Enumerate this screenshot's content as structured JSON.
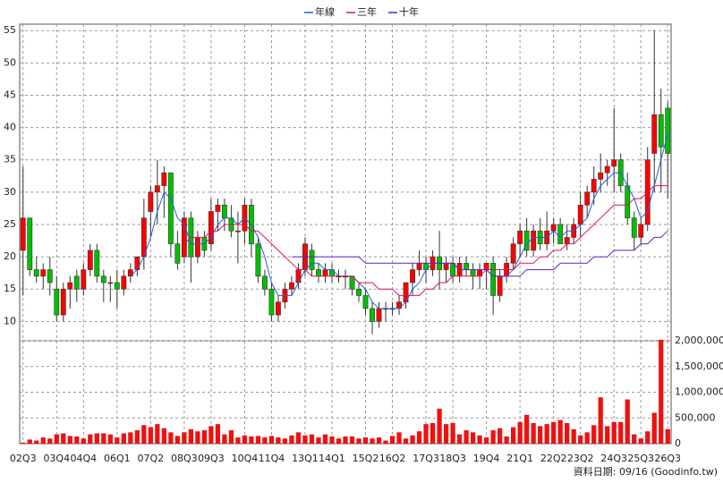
{
  "chart_data": {
    "type": "candlestick",
    "legend": [
      "年線",
      "三年",
      "十年"
    ],
    "footer": "資料日期: 09/16 (Goodinfo.tw)",
    "categories": [
      "02Q3",
      null,
      null,
      null,
      null,
      "03Q4",
      null,
      null,
      null,
      "04Q4",
      null,
      null,
      null,
      null,
      "06Q1",
      null,
      null,
      null,
      null,
      "07Q2",
      null,
      null,
      null,
      null,
      "08Q3",
      null,
      null,
      null,
      "09Q3",
      null,
      null,
      null,
      null,
      "10Q4",
      null,
      null,
      null,
      "11Q4",
      null,
      null,
      null,
      null,
      "13Q1",
      null,
      null,
      null,
      "14Q1",
      null,
      null,
      null,
      null,
      "15Q2",
      null,
      null,
      null,
      "16Q2",
      null,
      null,
      null,
      null,
      "17Q3",
      null,
      null,
      null,
      "18Q3",
      null,
      null,
      null,
      null,
      "19Q4",
      null,
      null,
      null,
      null,
      "21Q1",
      null,
      null,
      null,
      null,
      "22Q2",
      null,
      null,
      null,
      "23Q2",
      null,
      null,
      null,
      null,
      "24Q3",
      null,
      null,
      null,
      "25Q3",
      null,
      null,
      null,
      "26Q3"
    ],
    "candles": [
      [
        21,
        34,
        14,
        26
      ],
      [
        26,
        26,
        17,
        18
      ],
      [
        18,
        20,
        16,
        17
      ],
      [
        17,
        19,
        15,
        18
      ],
      [
        18,
        20,
        14,
        16
      ],
      [
        15,
        17,
        10,
        11
      ],
      [
        11,
        16,
        10,
        15
      ],
      [
        15,
        17,
        12,
        16
      ],
      [
        17,
        18,
        13,
        15
      ],
      [
        15,
        19,
        14,
        18
      ],
      [
        18,
        22,
        17,
        21
      ],
      [
        21,
        22,
        16,
        17
      ],
      [
        17,
        18,
        13,
        16
      ],
      [
        16,
        17,
        13,
        16
      ],
      [
        16,
        18,
        12,
        15
      ],
      [
        15,
        18,
        14,
        17
      ],
      [
        17,
        19,
        16,
        18
      ],
      [
        18,
        20,
        17,
        20
      ],
      [
        20,
        29,
        18,
        26
      ],
      [
        27,
        31,
        23,
        30
      ],
      [
        30,
        35,
        25,
        31
      ],
      [
        31,
        34,
        26,
        33
      ],
      [
        33,
        33,
        20,
        22
      ],
      [
        22,
        24,
        18,
        19
      ],
      [
        20,
        27,
        19,
        26
      ],
      [
        26,
        27,
        16,
        20
      ],
      [
        20,
        24,
        19,
        23
      ],
      [
        23,
        24,
        20,
        21
      ],
      [
        22,
        29,
        21,
        27
      ],
      [
        27,
        29,
        24,
        28
      ],
      [
        28,
        29,
        24,
        26
      ],
      [
        26,
        28,
        23,
        24
      ],
      [
        24,
        27,
        19,
        24
      ],
      [
        24,
        29,
        22,
        28
      ],
      [
        28,
        29,
        20,
        22
      ],
      [
        22,
        23,
        16,
        17
      ],
      [
        17,
        18,
        14,
        15
      ],
      [
        15,
        16,
        10,
        11
      ],
      [
        11,
        14,
        10,
        13
      ],
      [
        13,
        16,
        12,
        15
      ],
      [
        15,
        17,
        14,
        16
      ],
      [
        16,
        19,
        15,
        18
      ],
      [
        18,
        23,
        17,
        22
      ],
      [
        21,
        22,
        17,
        18
      ],
      [
        18,
        19,
        16,
        17
      ],
      [
        17,
        19,
        16,
        18
      ],
      [
        18,
        19,
        16,
        17
      ],
      [
        17,
        18,
        16,
        17
      ],
      [
        17,
        18,
        15,
        17
      ],
      [
        17,
        17,
        14,
        15
      ],
      [
        15,
        16,
        13,
        14
      ],
      [
        14,
        15,
        11,
        12
      ],
      [
        12,
        13,
        8,
        10
      ],
      [
        10,
        13,
        9,
        12
      ],
      [
        12,
        13,
        10,
        12
      ],
      [
        12,
        13,
        11,
        12
      ],
      [
        12,
        14,
        11,
        13
      ],
      [
        13,
        16,
        12,
        16
      ],
      [
        16,
        19,
        14,
        18
      ],
      [
        18,
        21,
        17,
        19
      ],
      [
        19,
        20,
        16,
        18
      ],
      [
        18,
        21,
        17,
        20
      ],
      [
        20,
        24,
        15,
        18
      ],
      [
        18,
        20,
        16,
        19
      ],
      [
        19,
        20,
        16,
        17
      ],
      [
        17,
        20,
        16,
        19
      ],
      [
        19,
        20,
        17,
        18
      ],
      [
        18,
        19,
        15,
        17
      ],
      [
        17,
        19,
        15,
        18
      ],
      [
        18,
        19,
        15,
        19
      ],
      [
        19,
        20,
        11,
        14
      ],
      [
        14,
        18,
        13,
        17
      ],
      [
        17,
        20,
        16,
        19
      ],
      [
        19,
        23,
        18,
        22
      ],
      [
        22,
        25,
        20,
        24
      ],
      [
        24,
        26,
        20,
        21
      ],
      [
        21,
        25,
        20,
        24
      ],
      [
        24,
        26,
        21,
        22
      ],
      [
        22,
        27,
        21,
        24
      ],
      [
        24,
        26,
        22,
        25
      ],
      [
        25,
        26,
        22,
        22
      ],
      [
        22,
        25,
        21,
        23
      ],
      [
        23,
        26,
        22,
        25
      ],
      [
        25,
        30,
        23,
        28
      ],
      [
        28,
        31,
        26,
        30
      ],
      [
        30,
        34,
        28,
        32
      ],
      [
        32,
        36,
        30,
        33
      ],
      [
        33,
        35,
        31,
        34
      ],
      [
        34,
        43,
        30,
        35
      ],
      [
        35,
        36,
        30,
        31
      ],
      [
        31,
        33,
        25,
        26
      ],
      [
        26,
        27,
        21,
        23
      ],
      [
        23,
        26,
        22,
        25
      ],
      [
        25,
        37,
        24,
        35
      ],
      [
        36,
        55,
        30,
        42
      ],
      [
        42,
        46,
        30,
        37
      ],
      [
        43,
        44,
        29,
        36
      ]
    ],
    "volume": [
      20000,
      80000,
      60000,
      120000,
      100000,
      180000,
      200000,
      150000,
      140000,
      100000,
      180000,
      200000,
      200000,
      180000,
      120000,
      200000,
      220000,
      260000,
      360000,
      320000,
      380000,
      300000,
      220000,
      150000,
      220000,
      280000,
      240000,
      260000,
      340000,
      380000,
      180000,
      260000,
      120000,
      160000,
      140000,
      150000,
      120000,
      150000,
      120000,
      100000,
      160000,
      220000,
      160000,
      180000,
      120000,
      180000,
      140000,
      100000,
      140000,
      140000,
      100000,
      120000,
      100000,
      120000,
      60000,
      150000,
      220000,
      100000,
      160000,
      240000,
      380000,
      400000,
      680000,
      380000,
      400000,
      180000,
      260000,
      220000,
      160000,
      120000,
      260000,
      300000,
      140000,
      320000,
      420000,
      560000,
      400000,
      340000,
      380000,
      420000,
      460000,
      400000,
      280000,
      160000,
      220000,
      360000,
      900000,
      340000,
      420000,
      420000,
      860000,
      180000,
      100000,
      240000,
      600000,
      2020000,
      280000
    ],
    "series": [
      {
        "name": "年線",
        "color": "#1f5fd8",
        "values": [
          null,
          null,
          null,
          null,
          null,
          null,
          null,
          null,
          null,
          null,
          null,
          null,
          null,
          null,
          null,
          null,
          17,
          18,
          20,
          23,
          27,
          30,
          29,
          26,
          25,
          22,
          22,
          22,
          23,
          25,
          26,
          26,
          25,
          26,
          25,
          23,
          20,
          16,
          14,
          14,
          14,
          16,
          18,
          19,
          19,
          18,
          18,
          17,
          17,
          17,
          16,
          15,
          13,
          12,
          12,
          12,
          12,
          13,
          15,
          16,
          18,
          19,
          19,
          19,
          19,
          18,
          18,
          18,
          18,
          18,
          17,
          17,
          17,
          18,
          20,
          22,
          23,
          23,
          23,
          24,
          23,
          24,
          24,
          25,
          26,
          29,
          31,
          32,
          33,
          33,
          31,
          29,
          26,
          27,
          31,
          35,
          39
        ]
      },
      {
        "name": "三年",
        "color": "#e0105a",
        "values": [
          null,
          null,
          null,
          null,
          null,
          null,
          null,
          null,
          null,
          null,
          null,
          null,
          null,
          null,
          null,
          null,
          null,
          null,
          null,
          null,
          null,
          null,
          null,
          null,
          22,
          23,
          23,
          23,
          24,
          24,
          25,
          25,
          25,
          25,
          24,
          24,
          23,
          22,
          21,
          20,
          19,
          18,
          18,
          17,
          17,
          17,
          17,
          17,
          17,
          17,
          16,
          16,
          16,
          15,
          15,
          15,
          14,
          14,
          14,
          14,
          15,
          15,
          16,
          16,
          17,
          17,
          17,
          17,
          17,
          18,
          18,
          18,
          18,
          18,
          19,
          19,
          19,
          20,
          20,
          21,
          21,
          22,
          22,
          23,
          24,
          25,
          26,
          27,
          28,
          28,
          28,
          29,
          29,
          30,
          31,
          31,
          31
        ]
      },
      {
        "name": "十年",
        "color": "#6020c0",
        "values": [
          null,
          null,
          null,
          null,
          null,
          null,
          null,
          null,
          null,
          null,
          null,
          null,
          null,
          null,
          null,
          null,
          null,
          null,
          null,
          null,
          null,
          null,
          null,
          null,
          null,
          null,
          null,
          null,
          null,
          null,
          null,
          null,
          null,
          null,
          null,
          null,
          null,
          null,
          null,
          null,
          20,
          20,
          20,
          20,
          20,
          20,
          20,
          20,
          20,
          20,
          20,
          19,
          19,
          19,
          19,
          19,
          19,
          19,
          19,
          19,
          19,
          19,
          19,
          19,
          19,
          18,
          18,
          18,
          18,
          18,
          17,
          17,
          17,
          17,
          17,
          18,
          18,
          18,
          18,
          18,
          19,
          19,
          19,
          19,
          19,
          20,
          20,
          20,
          21,
          21,
          21,
          21,
          22,
          22,
          23,
          23,
          24
        ]
      }
    ],
    "up_color": "#ff0000",
    "down_color": "#00c000",
    "volume_color": "#ee1111",
    "ylim": [
      7,
      56
    ],
    "yticks": [
      10,
      15,
      20,
      25,
      30,
      35,
      40,
      45,
      50,
      55
    ],
    "y2lim": [
      0,
      2000000
    ],
    "y2ticks": [
      0,
      {
        "value": 500000,
        "label": "500,000"
      },
      {
        "value": 1000000,
        "label": "1,000,000"
      },
      {
        "value": 1500000,
        "label": "1,500,000"
      },
      {
        "value": 2000000,
        "label": "2,000,000"
      }
    ],
    "grid": true
  }
}
